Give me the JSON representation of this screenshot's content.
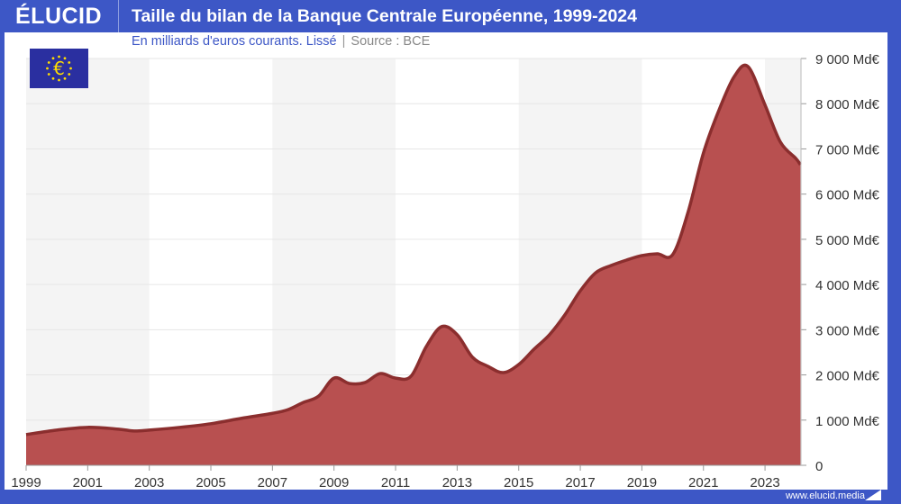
{
  "header": {
    "logo": "ÉLUCID",
    "title": "Taille du bilan de la Banque Centrale Européenne, 1999-2024"
  },
  "subtitle": {
    "text": "En milliards d'euros courants. Lissé",
    "source": "Source : BCE"
  },
  "footer": {
    "url": "www.elucid.media"
  },
  "colors": {
    "brand": "#3d57c6",
    "fill": "#b85050",
    "line": "#8b2e2e"
  },
  "icons": {
    "flag": "eu-flag-euro-icon"
  },
  "chart_data": {
    "type": "area",
    "title": "Taille du bilan de la Banque Centrale Européenne, 1999-2024",
    "xlabel": "",
    "ylabel": "",
    "xlim": [
      1999,
      2024.2
    ],
    "ylim": [
      0,
      9000
    ],
    "y_axis_position": "right",
    "grid": true,
    "x_ticks": [
      "1999",
      "2001",
      "2003",
      "2005",
      "2007",
      "2009",
      "2011",
      "2013",
      "2015",
      "2017",
      "2019",
      "2021",
      "2023"
    ],
    "y_ticks": [
      "0",
      "1 000 Md€",
      "2 000 Md€",
      "3 000 Md€",
      "4 000 Md€",
      "5 000 Md€",
      "6 000 Md€",
      "7 000 Md€",
      "8 000 Md€",
      "9 000 Md€"
    ],
    "x": [
      1999,
      2000,
      2001,
      2002,
      2002.5,
      2003,
      2004,
      2005,
      2006,
      2007,
      2007.5,
      2008,
      2008.5,
      2009,
      2009.5,
      2010,
      2010.5,
      2011,
      2011.5,
      2012,
      2012.5,
      2013,
      2013.5,
      2014,
      2014.5,
      2015,
      2015.5,
      2016,
      2016.5,
      2017,
      2017.5,
      2018,
      2018.5,
      2019,
      2019.5,
      2020,
      2020.5,
      2021,
      2021.5,
      2022,
      2022.45,
      2023,
      2023.5,
      2024,
      2024.15
    ],
    "values": [
      680,
      780,
      840,
      800,
      760,
      780,
      840,
      920,
      1040,
      1150,
      1230,
      1390,
      1530,
      1930,
      1810,
      1830,
      2030,
      1930,
      1970,
      2630,
      3070,
      2890,
      2390,
      2190,
      2050,
      2230,
      2570,
      2890,
      3330,
      3860,
      4260,
      4420,
      4540,
      4640,
      4680,
      4660,
      5600,
      6910,
      7850,
      8600,
      8820,
      7970,
      7150,
      6790,
      6650
    ]
  }
}
